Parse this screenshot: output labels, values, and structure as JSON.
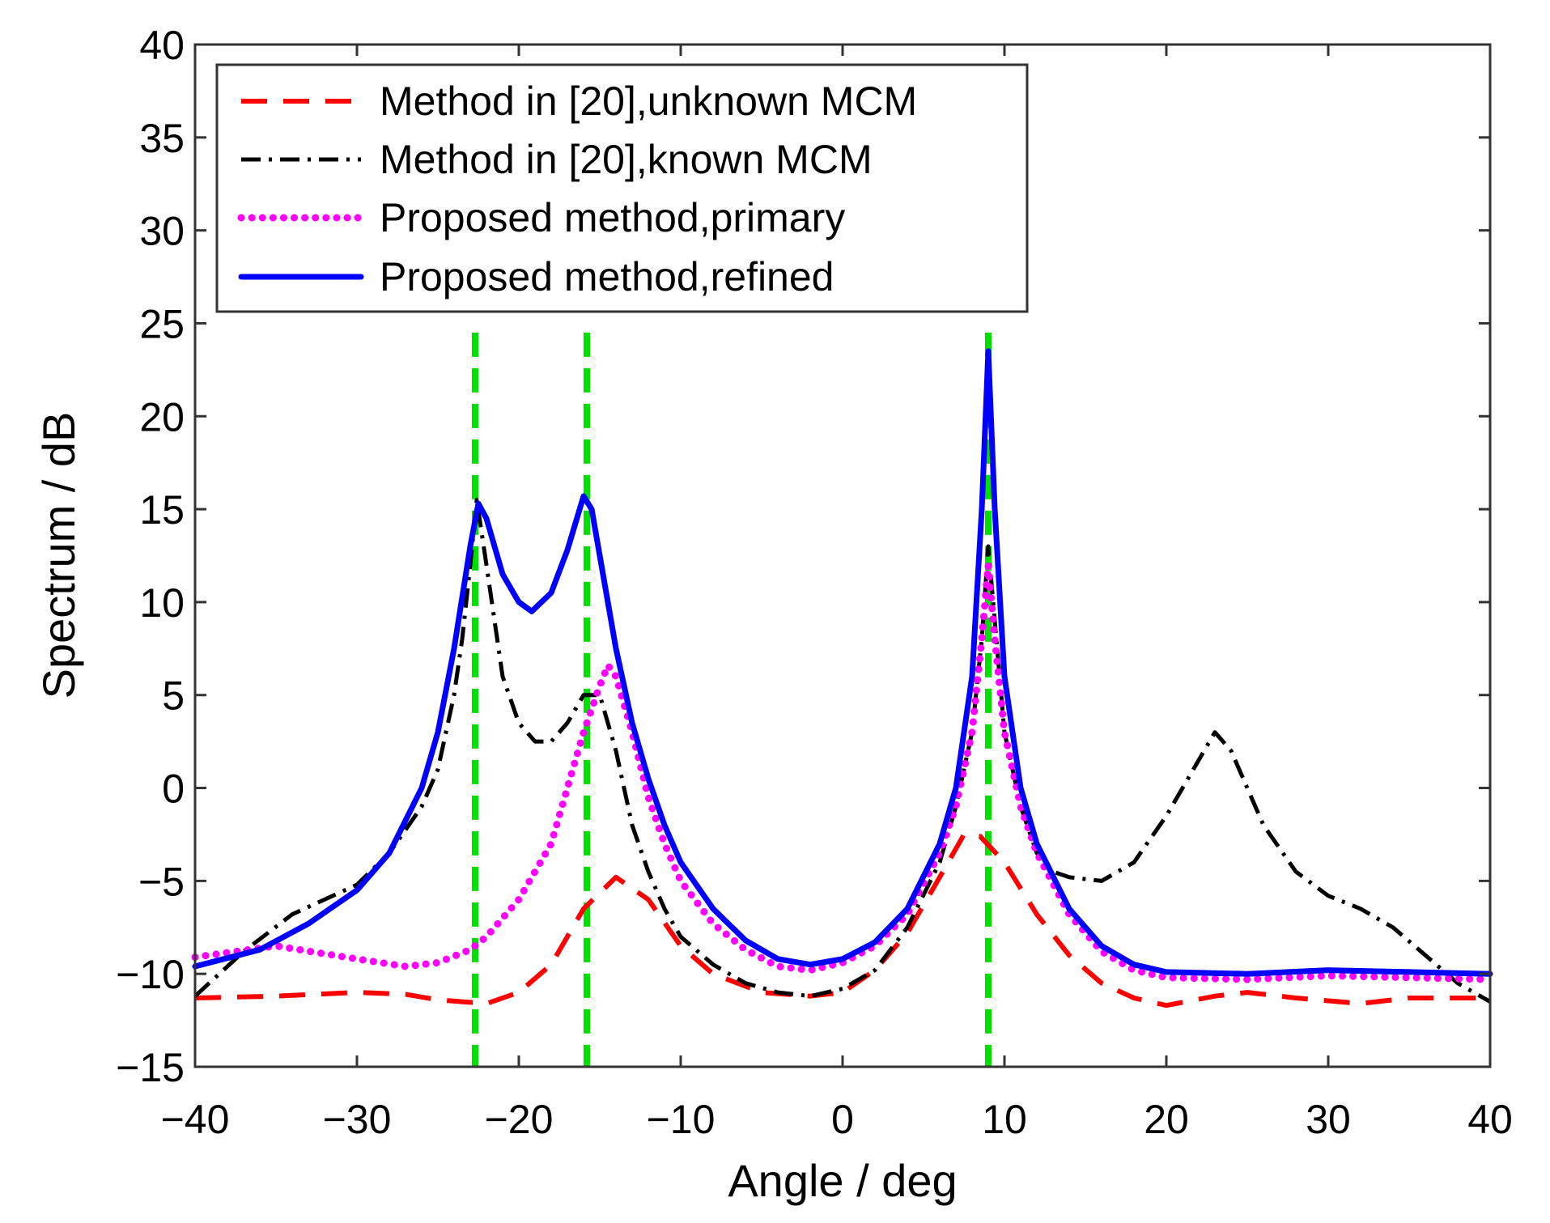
{
  "chart_data": {
    "type": "line",
    "title": "",
    "xlabel": "Angle / deg",
    "ylabel": "Spectrum / dB",
    "xlim": [
      -40,
      40
    ],
    "ylim": [
      -15,
      40
    ],
    "xticks": [
      -40,
      -30,
      -20,
      -10,
      0,
      10,
      20,
      30,
      40
    ],
    "xtick_labels": [
      "−40",
      "−30",
      "−20",
      "−10",
      "0",
      "10",
      "20",
      "30",
      "40"
    ],
    "yticks": [
      -15,
      -10,
      -5,
      0,
      5,
      10,
      15,
      20,
      25,
      30,
      35,
      40
    ],
    "ytick_labels": [
      "−15",
      "−10",
      "−5",
      "0",
      "5",
      "10",
      "15",
      "20",
      "25",
      "30",
      "35",
      "40"
    ],
    "grid": false,
    "legend_position": "top-left",
    "reference_lines": {
      "x": [
        -22.7,
        -15.8,
        9
      ],
      "color": "#00e000",
      "style": "dashed",
      "y_range": [
        -15,
        24.5
      ]
    },
    "series": [
      {
        "name": "Method in [20],unknown MCM",
        "color": "#ff0000",
        "style": "dashed",
        "x": [
          -40,
          -35,
          -30,
          -27,
          -25,
          -22,
          -20,
          -18,
          -16,
          -14,
          -12,
          -10,
          -8,
          -5,
          -2,
          0,
          2,
          4,
          6,
          7.5,
          8.5,
          10,
          12,
          14,
          16,
          18,
          20,
          23,
          25,
          28,
          32,
          35,
          40
        ],
        "y": [
          -11.3,
          -11.2,
          -11,
          -11.1,
          -11.4,
          -11.6,
          -11,
          -9.5,
          -6.5,
          -4.8,
          -6,
          -8.5,
          -10,
          -11,
          -11.2,
          -11,
          -9.8,
          -7.8,
          -4.8,
          -2.5,
          -2.6,
          -4,
          -6.8,
          -9,
          -10.5,
          -11.3,
          -11.7,
          -11.2,
          -11,
          -11.3,
          -11.6,
          -11.3,
          -11.3
        ]
      },
      {
        "name": "Method in [20],known MCM",
        "color": "#000000",
        "style": "dashdot",
        "x": [
          -40,
          -37,
          -34,
          -30,
          -28,
          -26,
          -25,
          -24,
          -23.5,
          -23,
          -22.6,
          -22,
          -21,
          -20,
          -19,
          -18,
          -17,
          -16,
          -15,
          -14,
          -13,
          -12,
          -11,
          -10,
          -8,
          -6,
          -4,
          -2,
          0,
          2,
          4,
          6,
          7,
          8,
          8.6,
          9,
          9.4,
          10,
          11,
          12,
          13,
          14,
          16,
          18,
          20,
          22,
          23,
          24,
          26,
          28,
          30,
          32,
          34,
          36,
          38,
          40
        ],
        "y": [
          -11.2,
          -8.8,
          -6.8,
          -5.2,
          -3.5,
          -1,
          1,
          5,
          8,
          12,
          15.5,
          12,
          6,
          3.5,
          2.5,
          2.5,
          3.5,
          5,
          5,
          2,
          -2,
          -4.5,
          -6.5,
          -8,
          -9.5,
          -10.5,
          -11,
          -11.2,
          -10.8,
          -9.8,
          -7.5,
          -4,
          -1,
          3,
          8,
          13,
          9,
          3,
          -1,
          -3.5,
          -4.5,
          -4.8,
          -5,
          -4,
          -1.5,
          1.5,
          3,
          2,
          -2,
          -4.5,
          -5.8,
          -6.5,
          -7.5,
          -9,
          -10.5,
          -11.5
        ]
      },
      {
        "name": "Proposed method,primary",
        "color": "#ff00ff",
        "style": "dotted",
        "x": [
          -40,
          -35,
          -30,
          -27,
          -25,
          -23,
          -22,
          -20,
          -18,
          -17,
          -16,
          -15,
          -14.5,
          -14,
          -13,
          -12,
          -11,
          -10,
          -8,
          -6,
          -4,
          -2,
          0,
          2,
          4,
          6,
          7,
          8,
          8.6,
          9,
          9.4,
          10,
          11,
          12,
          14,
          16,
          18,
          20,
          25,
          30,
          35,
          40
        ],
        "y": [
          -9.1,
          -8.5,
          -9.2,
          -9.6,
          -9.4,
          -8.7,
          -8,
          -6,
          -3,
          0,
          3,
          5.5,
          6.6,
          6,
          3,
          -0.5,
          -3,
          -5,
          -7.3,
          -8.7,
          -9.6,
          -9.8,
          -9.4,
          -8.5,
          -6.8,
          -3.5,
          -1,
          3,
          8,
          12,
          8,
          3,
          -1,
          -3.5,
          -6.8,
          -8.8,
          -9.8,
          -10.2,
          -10.3,
          -10.1,
          -10.2,
          -10.3
        ]
      },
      {
        "name": "Proposed method,refined",
        "color": "#0000ff",
        "style": "solid",
        "x": [
          -40,
          -36,
          -33,
          -30,
          -28,
          -26,
          -25,
          -24,
          -23,
          -22.5,
          -22,
          -21,
          -20,
          -19.2,
          -18,
          -17,
          -16,
          -15.5,
          -15,
          -14,
          -13,
          -12,
          -11,
          -10,
          -8,
          -6,
          -4,
          -2,
          0,
          2,
          4,
          6,
          7,
          8,
          8.6,
          9,
          9.4,
          10,
          11,
          12,
          14,
          16,
          18,
          20,
          25,
          30,
          35,
          40
        ],
        "y": [
          -9.6,
          -8.7,
          -7.3,
          -5.5,
          -3.5,
          0,
          3,
          7.5,
          13,
          15.3,
          14.5,
          11.5,
          10,
          9.5,
          10.5,
          12.8,
          15.7,
          15,
          12.5,
          7.5,
          3.5,
          0.5,
          -2,
          -4,
          -6.5,
          -8.2,
          -9.2,
          -9.5,
          -9.2,
          -8.3,
          -6.5,
          -3,
          0,
          6,
          15,
          23.5,
          15,
          6,
          0,
          -3,
          -6.5,
          -8.5,
          -9.5,
          -9.9,
          -10,
          -9.8,
          -9.9,
          -10
        ]
      }
    ]
  }
}
